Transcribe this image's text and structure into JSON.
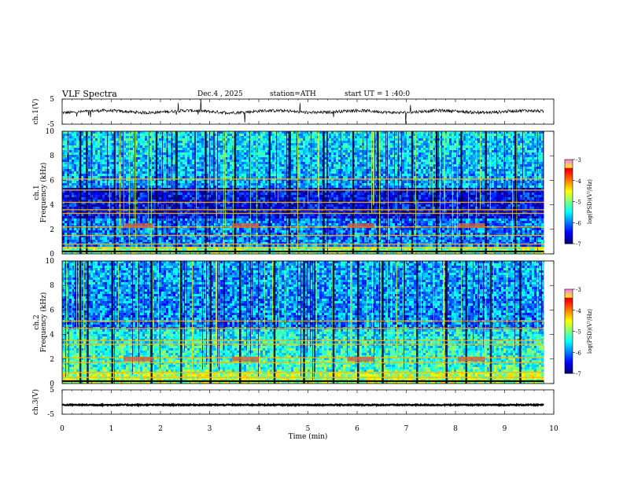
{
  "header": {
    "title": "VLF  Spectra",
    "date": "Dec.4  , 2025",
    "station": "station=ATH",
    "start": "start  UT  =   1  :40:0"
  },
  "chart_data": [
    {
      "type": "line",
      "name": "ch1-waveform",
      "ylabel": "ch.1(V)",
      "yticks": [
        "5",
        "-5"
      ],
      "ylim": [
        -5,
        5
      ],
      "xlim": [
        0,
        10
      ],
      "data_end_min": 9.8,
      "baseline_v": 0.0,
      "color": "#000000"
    },
    {
      "type": "heatmap",
      "name": "ch1-spectrogram",
      "ylabel_line1": "ch.1",
      "ylabel_line2": "Frequency  (kHz)",
      "ylim": [
        0,
        10
      ],
      "yticks": [
        "0",
        "2",
        "4",
        "6",
        "8",
        "10"
      ],
      "xlim": [
        0,
        10
      ],
      "data_end_min": 9.8,
      "colorbar": {
        "label": "log(PSD)(V²/Hz)",
        "range": [
          -7,
          -3
        ],
        "ticks": [
          "-3",
          "-4",
          "-5",
          "-6",
          "-7"
        ]
      },
      "lines_khz": [
        0.2,
        0.5,
        0.8,
        1.5,
        2.2,
        3.3,
        3.6,
        4.2,
        5.2,
        6.1
      ],
      "bursts_min": [
        0.35,
        0.48,
        1.05,
        1.9,
        2.3,
        2.9,
        3.5,
        4.2,
        4.6,
        5.3,
        5.9,
        6.4,
        7.1,
        7.6,
        8.1,
        8.6,
        9.2
      ],
      "tone_patches": [
        {
          "t0": 1.25,
          "t1": 1.85,
          "khz": 2.3
        },
        {
          "t0": 3.45,
          "t1": 4.0,
          "khz": 2.3
        },
        {
          "t0": 5.8,
          "t1": 6.35,
          "khz": 2.3
        },
        {
          "t0": 8.05,
          "t1": 8.6,
          "khz": 2.3
        }
      ]
    },
    {
      "type": "heatmap",
      "name": "ch2-spectrogram",
      "ylabel_line1": "ch.2",
      "ylabel_line2": "Frequency  (kHz)",
      "ylim": [
        0,
        10
      ],
      "yticks": [
        "0",
        "2",
        "4",
        "6",
        "8",
        "10"
      ],
      "xlim": [
        0,
        10
      ],
      "data_end_min": 9.8,
      "colorbar": {
        "label": "log(PSD)(V²/Hz)",
        "range": [
          -7,
          -3
        ],
        "ticks": [
          "-3",
          "-4",
          "-5",
          "-6",
          "-7"
        ]
      },
      "lines_khz": [
        0.5,
        0.9,
        1.7,
        2.1,
        3.2,
        3.5,
        4.5,
        5.1
      ],
      "bursts_min": [
        0.35,
        0.5,
        1.0,
        1.8,
        2.4,
        3.0,
        3.6,
        4.3,
        4.9,
        5.5,
        6.0,
        6.5,
        7.2,
        7.8,
        8.2,
        8.7,
        9.3
      ],
      "tone_patches": [
        {
          "t0": 1.25,
          "t1": 1.85,
          "khz": 2.0
        },
        {
          "t0": 3.45,
          "t1": 4.0,
          "khz": 2.0
        },
        {
          "t0": 5.8,
          "t1": 6.35,
          "khz": 2.0
        },
        {
          "t0": 8.05,
          "t1": 8.6,
          "khz": 2.0
        }
      ]
    },
    {
      "type": "line",
      "name": "ch3-waveform",
      "ylabel": "ch.3(V)",
      "yticks": [
        "5",
        "-5"
      ],
      "ylim": [
        -5,
        5
      ],
      "xlim": [
        0,
        10
      ],
      "data_end_min": 9.8,
      "baseline_v": -1.2,
      "color": "#000000"
    }
  ],
  "xaxis": {
    "label": "Time  (min)",
    "ticks": [
      "0",
      "1",
      "2",
      "3",
      "4",
      "5",
      "6",
      "7",
      "8",
      "9",
      "10"
    ]
  }
}
